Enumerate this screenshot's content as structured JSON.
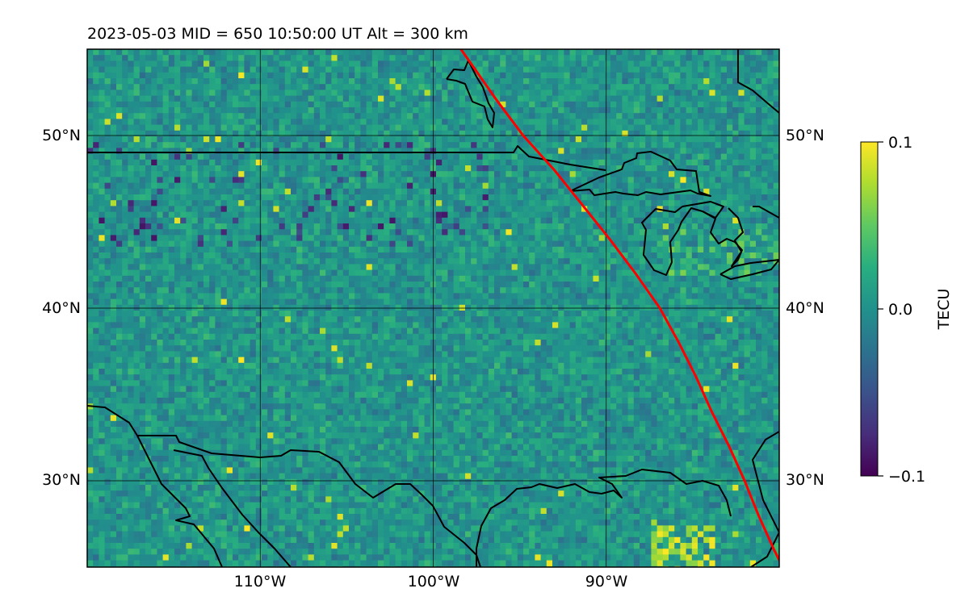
{
  "title": "2023-05-03  MID = 650    10:50:00  UT  Alt = 300 km",
  "map": {
    "lon_range": [
      -120,
      -80
    ],
    "lat_range": [
      25,
      55
    ],
    "gridlines": {
      "lon": [
        -110,
        -100,
        -90
      ],
      "lat": [
        30,
        40,
        50
      ]
    },
    "lon_tick_labels": [
      "110°W",
      "100°W",
      "90°W"
    ],
    "lat_tick_labels_left": [
      "30°N",
      "40°N",
      "50°N"
    ],
    "lat_tick_labels_right": [
      "30°N",
      "40°N",
      "50°N"
    ],
    "field": "TEC perturbation (viridis colormap)",
    "track_color": "#ff0000",
    "coastline_color": "#000000",
    "track": [
      [
        -98.4,
        55
      ],
      [
        -96.3,
        52
      ],
      [
        -94.8,
        50
      ],
      [
        -93.0,
        48
      ],
      [
        -91.4,
        46
      ],
      [
        -89.8,
        44
      ],
      [
        -88.3,
        42
      ],
      [
        -86.9,
        40
      ],
      [
        -85.8,
        38
      ],
      [
        -84.8,
        36
      ],
      [
        -83.9,
        34
      ],
      [
        -82.9,
        32
      ],
      [
        -82.0,
        30
      ],
      [
        -81.2,
        28
      ],
      [
        -80.3,
        26
      ],
      [
        -79.8,
        25
      ]
    ]
  },
  "colorbar": {
    "label": "TECU",
    "colormap": "viridis",
    "min": -0.1,
    "max": 0.1,
    "ticks": [
      0.1,
      0.0,
      -0.1
    ],
    "tick_labels": [
      "0.1",
      "0.0",
      "−0.1"
    ]
  }
}
